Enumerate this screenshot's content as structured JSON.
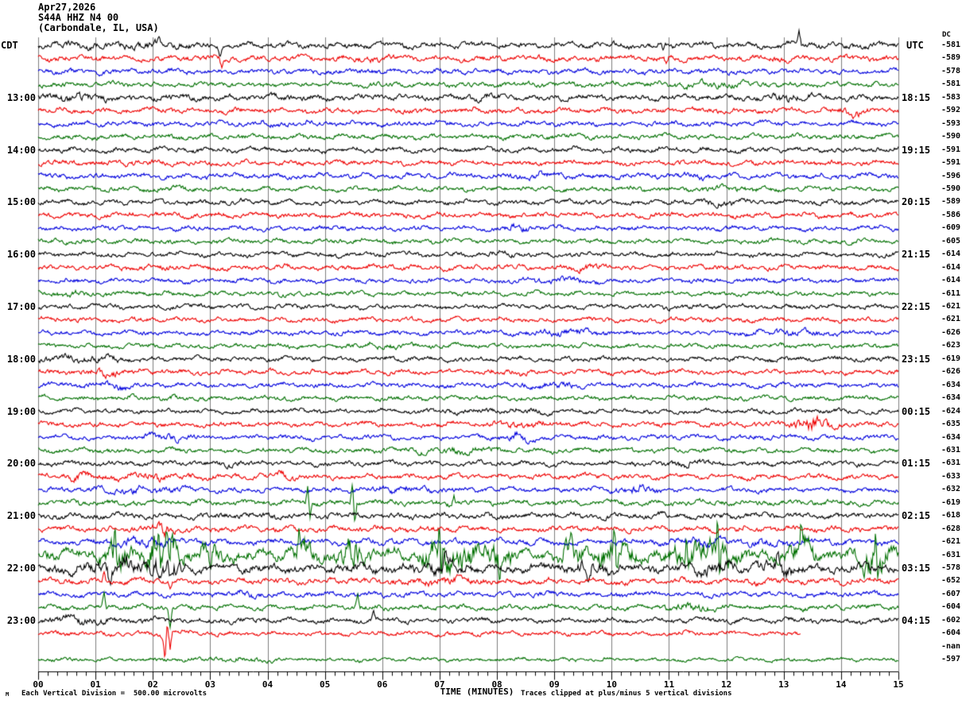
{
  "header": {
    "date": "Apr27,2026",
    "station": "S44A HHZ N4 00",
    "location": "(Carbondale, IL, USA)"
  },
  "left_timezone_label": "CDT",
  "right_timezone_label": "UTC",
  "dc_column_header": "DC",
  "footer": {
    "left": "Each Vertical Division =  500.00 microvolts",
    "xlabel": "TIME (MINUTES)",
    "right": "Traces clipped at plus/minus 5 vertical divisions",
    "corner_mark": "M"
  },
  "palette": {
    "black": "#000000",
    "red": "#ee0000",
    "blue": "#0000dd",
    "green": "#007000",
    "grid": "#7d7d7d",
    "axis": "#000000"
  },
  "chart_data": {
    "type": "line",
    "kind": "seismogram-helicorder",
    "xlabel": "TIME (MINUTES)",
    "x_range": [
      0,
      15
    ],
    "x_tick_labels": [
      "00",
      "01",
      "02",
      "03",
      "04",
      "05",
      "06",
      "07",
      "08",
      "09",
      "10",
      "11",
      "12",
      "13",
      "14",
      "15"
    ],
    "minor_ticks_per_major": 6,
    "minutes_per_line": 15,
    "clip_divisions": 5,
    "microvolts_per_division": "500.00",
    "color_cycle": [
      "black",
      "red",
      "blue",
      "green"
    ],
    "rows": [
      {
        "color": "black",
        "dc": "-581",
        "cdt": "",
        "utc": "",
        "amp": 3.2,
        "spikes": [
          [
            13.27,
            16
          ],
          [
            3.17,
            -14
          ],
          [
            10.9,
            -9
          ]
        ]
      },
      {
        "color": "red",
        "dc": "-589",
        "cdt": "",
        "utc": "",
        "amp": 3.0,
        "spikes": [
          [
            3.2,
            -12
          ],
          [
            10.95,
            -8
          ]
        ]
      },
      {
        "color": "blue",
        "dc": "-578",
        "cdt": "",
        "utc": "",
        "amp": 2.8
      },
      {
        "color": "green",
        "dc": "-581",
        "cdt": "",
        "utc": "",
        "amp": 2.8
      },
      {
        "color": "black",
        "dc": "-583",
        "cdt": "13:00",
        "utc": "18:15",
        "amp": 3.2,
        "bursts": [
          [
            0.6,
            0.5,
            1.6
          ]
        ]
      },
      {
        "color": "red",
        "dc": "-592",
        "cdt": "",
        "utc": "",
        "amp": 2.9
      },
      {
        "color": "blue",
        "dc": "-593",
        "cdt": "",
        "utc": "",
        "amp": 2.7
      },
      {
        "color": "green",
        "dc": "-590",
        "cdt": "",
        "utc": "",
        "amp": 2.7
      },
      {
        "color": "black",
        "dc": "-591",
        "cdt": "14:00",
        "utc": "19:15",
        "amp": 2.8
      },
      {
        "color": "red",
        "dc": "-591",
        "cdt": "",
        "utc": "",
        "amp": 2.8
      },
      {
        "color": "blue",
        "dc": "-596",
        "cdt": "",
        "utc": "",
        "amp": 2.8
      },
      {
        "color": "green",
        "dc": "-590",
        "cdt": "",
        "utc": "",
        "amp": 2.6
      },
      {
        "color": "black",
        "dc": "-589",
        "cdt": "15:00",
        "utc": "20:15",
        "amp": 2.7
      },
      {
        "color": "red",
        "dc": "-586",
        "cdt": "",
        "utc": "",
        "amp": 2.8
      },
      {
        "color": "blue",
        "dc": "-609",
        "cdt": "",
        "utc": "",
        "amp": 2.6
      },
      {
        "color": "green",
        "dc": "-605",
        "cdt": "",
        "utc": "",
        "amp": 2.6
      },
      {
        "color": "black",
        "dc": "-614",
        "cdt": "16:00",
        "utc": "21:15",
        "amp": 2.6
      },
      {
        "color": "red",
        "dc": "-614",
        "cdt": "",
        "utc": "",
        "amp": 2.7
      },
      {
        "color": "blue",
        "dc": "-614",
        "cdt": "",
        "utc": "",
        "amp": 2.5
      },
      {
        "color": "green",
        "dc": "-611",
        "cdt": "",
        "utc": "",
        "amp": 2.5
      },
      {
        "color": "black",
        "dc": "-621",
        "cdt": "17:00",
        "utc": "22:15",
        "amp": 2.5
      },
      {
        "color": "red",
        "dc": "-621",
        "cdt": "",
        "utc": "",
        "amp": 2.6
      },
      {
        "color": "blue",
        "dc": "-626",
        "cdt": "",
        "utc": "",
        "amp": 2.5
      },
      {
        "color": "green",
        "dc": "-623",
        "cdt": "",
        "utc": "",
        "amp": 2.5
      },
      {
        "color": "black",
        "dc": "-619",
        "cdt": "18:00",
        "utc": "23:15",
        "amp": 2.6
      },
      {
        "color": "red",
        "dc": "-626",
        "cdt": "",
        "utc": "",
        "amp": 2.7,
        "bursts": [
          [
            1.2,
            0.4,
            1.8
          ]
        ]
      },
      {
        "color": "blue",
        "dc": "-634",
        "cdt": "",
        "utc": "",
        "amp": 2.6,
        "bursts": [
          [
            1.3,
            0.4,
            1.8
          ]
        ]
      },
      {
        "color": "green",
        "dc": "-634",
        "cdt": "",
        "utc": "",
        "amp": 2.5
      },
      {
        "color": "black",
        "dc": "-624",
        "cdt": "19:00",
        "utc": "00:15",
        "amp": 2.6
      },
      {
        "color": "red",
        "dc": "-635",
        "cdt": "",
        "utc": "",
        "amp": 2.7,
        "bursts": [
          [
            13.5,
            0.3,
            3.2
          ]
        ]
      },
      {
        "color": "blue",
        "dc": "-634",
        "cdt": "",
        "utc": "",
        "amp": 2.6,
        "bursts": [
          [
            8.4,
            0.3,
            2.0
          ]
        ]
      },
      {
        "color": "green",
        "dc": "-631",
        "cdt": "",
        "utc": "",
        "amp": 2.6
      },
      {
        "color": "black",
        "dc": "-631",
        "cdt": "20:00",
        "utc": "01:15",
        "amp": 2.7
      },
      {
        "color": "red",
        "dc": "-633",
        "cdt": "",
        "utc": "",
        "amp": 2.8,
        "bursts": [
          [
            0.7,
            0.3,
            1.8
          ]
        ]
      },
      {
        "color": "blue",
        "dc": "-632",
        "cdt": "",
        "utc": "",
        "amp": 2.7,
        "bursts": [
          [
            10.4,
            0.4,
            2.0
          ]
        ]
      },
      {
        "color": "green",
        "dc": "-619",
        "cdt": "",
        "utc": "",
        "amp": 2.9,
        "spikes": [
          [
            4.7,
            22
          ],
          [
            4.74,
            -20
          ],
          [
            5.48,
            26
          ],
          [
            5.52,
            -26
          ],
          [
            7.25,
            10
          ]
        ]
      },
      {
        "color": "black",
        "dc": "-618",
        "cdt": "21:00",
        "utc": "02:15",
        "amp": 3.2
      },
      {
        "color": "red",
        "dc": "-628",
        "cdt": "",
        "utc": "",
        "amp": 3.0,
        "bursts": [
          [
            2.2,
            0.3,
            1.8
          ]
        ],
        "spikes": [
          [
            2.2,
            -12
          ]
        ]
      },
      {
        "color": "blue",
        "dc": "-621",
        "cdt": "",
        "utc": "",
        "amp": 3.2,
        "bursts": [
          [
            1.8,
            0.5,
            2.0
          ],
          [
            11.5,
            0.6,
            1.7
          ],
          [
            12.8,
            0.3,
            1.9
          ]
        ]
      },
      {
        "color": "green",
        "dc": "-631",
        "cdt": "",
        "utc": "",
        "amp": 6.0,
        "bursts": [
          [
            1.4,
            0.25,
            3.0
          ],
          [
            2.15,
            0.3,
            4.5
          ],
          [
            3.0,
            0.2,
            2.5
          ],
          [
            4.6,
            0.2,
            2.5
          ],
          [
            5.5,
            0.25,
            3.0
          ],
          [
            7.0,
            0.3,
            3.5
          ],
          [
            7.5,
            0.2,
            2.5
          ],
          [
            8.05,
            0.2,
            3.0
          ],
          [
            9.3,
            0.25,
            2.5
          ],
          [
            10.05,
            0.3,
            3.0
          ],
          [
            11.3,
            0.25,
            2.5
          ],
          [
            11.9,
            0.3,
            3.5
          ],
          [
            13.3,
            0.25,
            3.0
          ],
          [
            14.6,
            0.3,
            3.5
          ]
        ],
        "spikes": [
          [
            1.35,
            30
          ],
          [
            1.38,
            -25
          ],
          [
            2.1,
            41
          ],
          [
            2.13,
            -41
          ],
          [
            2.25,
            38
          ],
          [
            2.28,
            -34
          ],
          [
            3.0,
            -28
          ],
          [
            4.55,
            30
          ],
          [
            5.5,
            -34
          ],
          [
            5.53,
            30
          ],
          [
            7.0,
            38
          ],
          [
            7.03,
            -30
          ],
          [
            7.5,
            24
          ],
          [
            8.05,
            -28
          ],
          [
            9.3,
            26
          ],
          [
            10.05,
            30
          ],
          [
            10.08,
            -26
          ],
          [
            11.3,
            24
          ],
          [
            11.85,
            41
          ],
          [
            11.88,
            -30
          ],
          [
            13.3,
            28
          ],
          [
            14.6,
            34
          ],
          [
            14.63,
            -28
          ]
        ]
      },
      {
        "color": "black",
        "dc": "-578",
        "cdt": "22:00",
        "utc": "03:15",
        "amp": 4.8,
        "bursts": [
          [
            1.5,
            0.6,
            2.0
          ],
          [
            2.3,
            0.3,
            2.2
          ],
          [
            7.0,
            0.4,
            1.8
          ],
          [
            9.6,
            0.3,
            1.8
          ],
          [
            11.8,
            0.3,
            1.8
          ],
          [
            12.9,
            0.3,
            2.0
          ]
        ],
        "spikes": [
          [
            1.25,
            -16
          ],
          [
            2.05,
            18
          ],
          [
            2.3,
            -14
          ],
          [
            7.1,
            14
          ],
          [
            9.6,
            -12
          ],
          [
            12.9,
            12
          ]
        ]
      },
      {
        "color": "red",
        "dc": "-652",
        "cdt": "",
        "utc": "",
        "amp": 3.2,
        "spikes": [
          [
            1.15,
            13
          ],
          [
            2.3,
            -10
          ]
        ]
      },
      {
        "color": "blue",
        "dc": "-607",
        "cdt": "",
        "utc": "",
        "amp": 2.8
      },
      {
        "color": "green",
        "dc": "-604",
        "cdt": "",
        "utc": "",
        "amp": 2.8,
        "spikes": [
          [
            1.15,
            18
          ],
          [
            2.3,
            -24
          ],
          [
            5.57,
            16
          ]
        ]
      },
      {
        "color": "black",
        "dc": "-602",
        "cdt": "23:00",
        "utc": "04:15",
        "amp": 2.8,
        "spikes": [
          [
            5.85,
            10
          ]
        ]
      },
      {
        "color": "red",
        "dc": "-604",
        "cdt": "",
        "utc": "",
        "amp": 2.4,
        "end": 13.3,
        "bursts": [
          [
            2.25,
            0.15,
            3.0
          ]
        ],
        "spikes": [
          [
            2.21,
            -28
          ],
          [
            2.25,
            12
          ],
          [
            2.3,
            -18
          ]
        ]
      },
      {
        "color": "blue",
        "dc": "-nan",
        "cdt": "",
        "utc": "",
        "missing": true
      },
      {
        "color": "green",
        "dc": "-597",
        "cdt": "",
        "utc": "",
        "amp": 2.0
      }
    ]
  }
}
